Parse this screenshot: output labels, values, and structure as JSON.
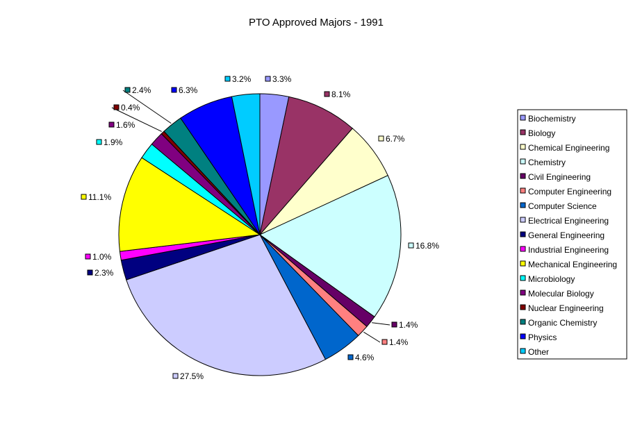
{
  "chart_data": {
    "type": "pie",
    "title": "PTO Approved Majors - 1991",
    "legend": "right",
    "categories": [
      "Biochemistry",
      "Biology",
      "Chemical Engineering",
      "Chemistry",
      "Civil Engineering",
      "Computer Engineering",
      "Computer Science",
      "Electrical Engineering",
      "General Engineering",
      "Industrial Engineering",
      "Mechanical Engineering",
      "Microbiology",
      "Molecular Biology",
      "Nuclear Engineering",
      "Organic Chemistry",
      "Physics",
      "Other"
    ],
    "values": [
      3.3,
      8.1,
      6.7,
      16.8,
      1.4,
      1.4,
      4.6,
      27.5,
      2.3,
      1.0,
      11.1,
      1.9,
      1.6,
      0.4,
      2.4,
      6.3,
      3.2
    ],
    "data_labels": [
      "3.3%",
      "8.1%",
      "6.7%",
      "16.8%",
      "1.4%",
      "1.4%",
      "4.6%",
      "27.5%",
      "2.3%",
      "1.0%",
      "11.1%",
      "1.9%",
      "1.6%",
      "0.4%",
      "2.4%",
      "6.3%",
      "3.2%"
    ],
    "colors": [
      "#9999ff",
      "#993366",
      "#ffffcc",
      "#ccffff",
      "#660066",
      "#ff8080",
      "#0066cc",
      "#ccccff",
      "#000080",
      "#ff00ff",
      "#ffff00",
      "#00ffff",
      "#800080",
      "#800000",
      "#008080",
      "#0000ff",
      "#00ccff"
    ]
  }
}
